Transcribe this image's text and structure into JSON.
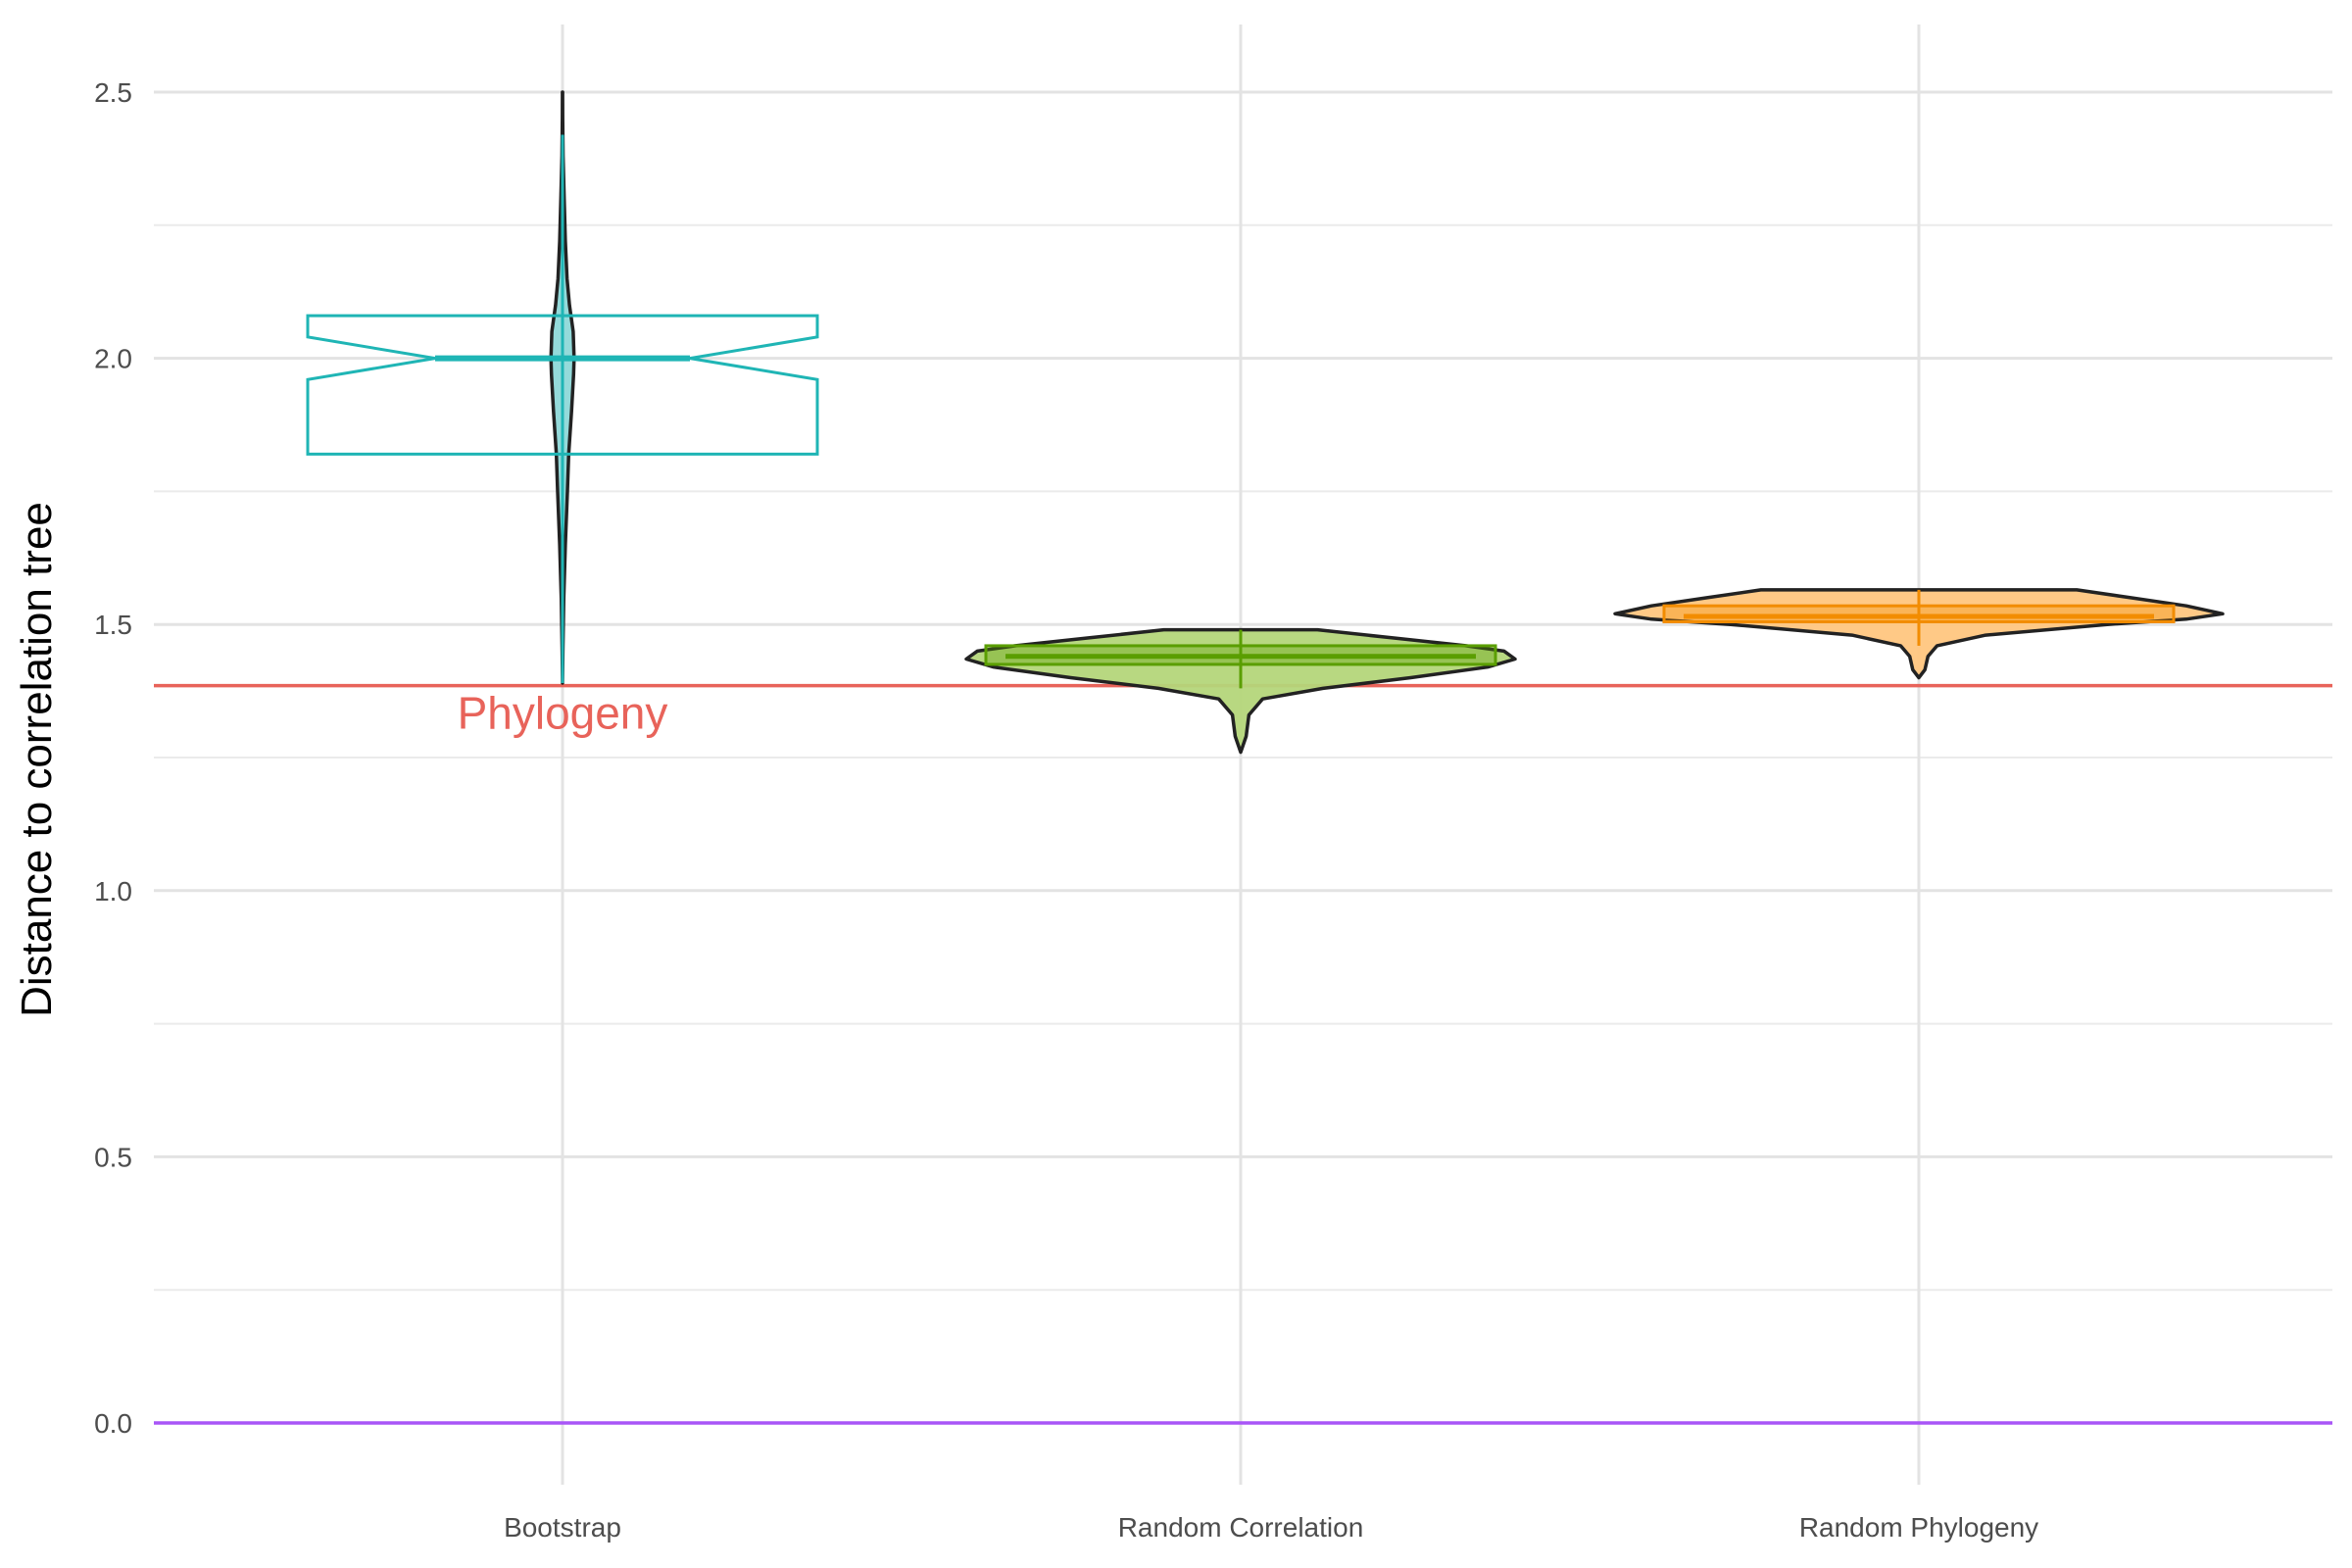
{
  "chart_data": {
    "type": "violin",
    "ylabel": "Distance to correlation tree",
    "xlabel": "",
    "ylim": [
      -0.13,
      2.63
    ],
    "y_ticks": [
      0.0,
      0.5,
      1.0,
      1.5,
      2.0,
      2.5
    ],
    "y_tick_labels": [
      "0.0",
      "0.5",
      "1.0",
      "1.5",
      "2.0",
      "2.5"
    ],
    "y_minor_ticks": [
      0.25,
      0.75,
      1.25,
      1.75,
      2.25
    ],
    "grid": true,
    "categories": [
      "Bootstrap",
      "Random Correlation",
      "Random Phylogeny"
    ],
    "series": [
      {
        "category": "Bootstrap",
        "color": "#1FB5B5",
        "fill": "#8ED8D8",
        "density": [
          [
            1.39,
            0.0
          ],
          [
            1.45,
            0.01
          ],
          [
            1.55,
            0.03
          ],
          [
            1.65,
            0.07
          ],
          [
            1.75,
            0.12
          ],
          [
            1.82,
            0.15
          ],
          [
            1.9,
            0.22
          ],
          [
            1.97,
            0.27
          ],
          [
            2.0,
            0.28
          ],
          [
            2.05,
            0.26
          ],
          [
            2.1,
            0.17
          ],
          [
            2.15,
            0.11
          ],
          [
            2.22,
            0.07
          ],
          [
            2.3,
            0.04
          ],
          [
            2.38,
            0.015
          ],
          [
            2.45,
            0.005
          ],
          [
            2.5,
            0.002
          ]
        ],
        "box": {
          "lower": 1.82,
          "q1": 1.96,
          "median": 2.0,
          "q3": 2.04,
          "upper": 2.08,
          "whisker_low": 1.39,
          "whisker_high": 2.42
        }
      },
      {
        "category": "Random Correlation",
        "color": "#5A9E00",
        "fill": "#B4D67A",
        "density": [
          [
            1.26,
            0.0
          ],
          [
            1.29,
            0.02
          ],
          [
            1.33,
            0.03
          ],
          [
            1.36,
            0.08
          ],
          [
            1.38,
            0.3
          ],
          [
            1.4,
            0.62
          ],
          [
            1.42,
            0.9
          ],
          [
            1.435,
            1.0
          ],
          [
            1.45,
            0.96
          ],
          [
            1.46,
            0.82
          ],
          [
            1.475,
            0.55
          ],
          [
            1.49,
            0.28
          ]
        ],
        "box": {
          "lower": 1.425,
          "median": 1.44,
          "upper": 1.46,
          "whisker_low": 1.38,
          "whisker_high": 1.49
        }
      },
      {
        "category": "Random Phylogeny",
        "color": "#F28C00",
        "fill": "#FFC680",
        "density": [
          [
            1.4,
            0.0
          ],
          [
            1.415,
            0.02
          ],
          [
            1.44,
            0.03
          ],
          [
            1.46,
            0.06
          ],
          [
            1.48,
            0.22
          ],
          [
            1.5,
            0.62
          ],
          [
            1.51,
            0.88
          ],
          [
            1.52,
            1.0
          ],
          [
            1.535,
            0.88
          ],
          [
            1.55,
            0.7
          ],
          [
            1.565,
            0.52
          ]
        ],
        "box": {
          "lower": 1.505,
          "median": 1.515,
          "upper": 1.535,
          "whisker_low": 1.46,
          "whisker_high": 1.565
        }
      }
    ],
    "reference_lines": [
      {
        "label": "Phylogeny",
        "value": 1.385,
        "color": "#E8635A"
      },
      {
        "label": "",
        "value": 0.0,
        "color": "#A855F7"
      }
    ]
  }
}
